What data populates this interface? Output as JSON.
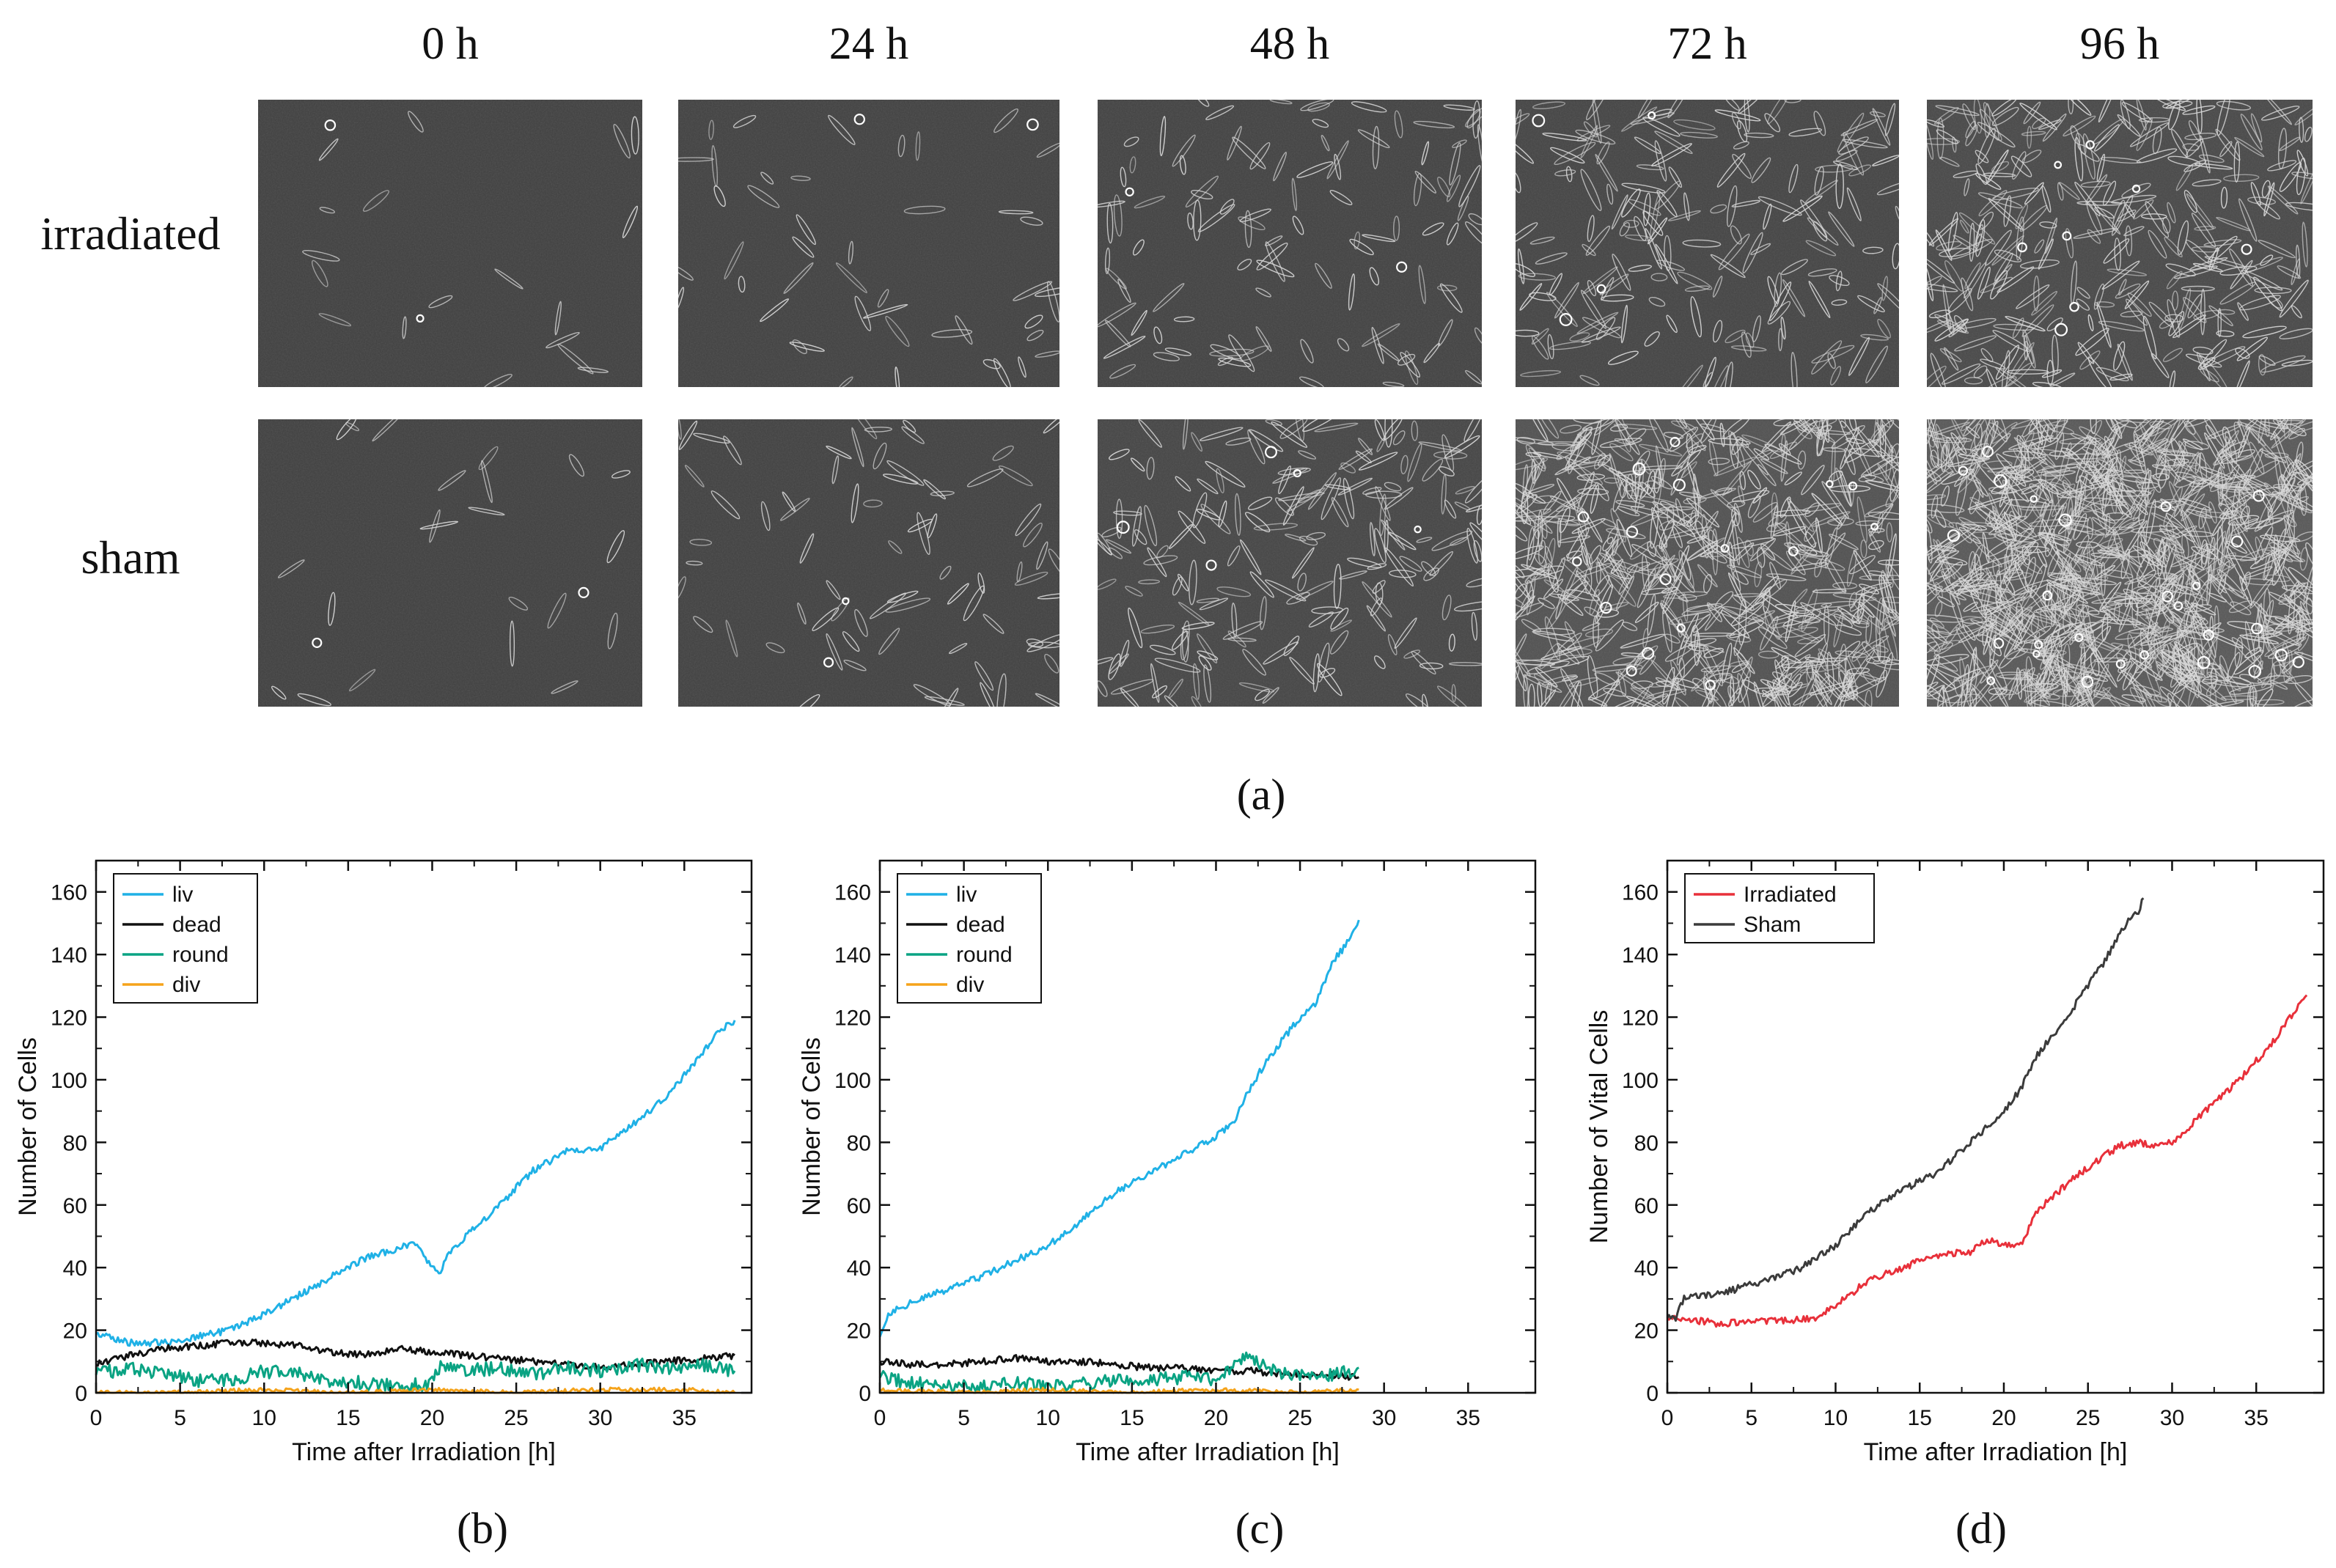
{
  "panel_a": {
    "time_labels": [
      "0 h",
      "24 h",
      "48 h",
      "72 h",
      "96 h"
    ],
    "row_labels": [
      "irradiated",
      "sham"
    ],
    "caption": "(a)",
    "cell_density": {
      "irradiated": [
        18,
        45,
        110,
        190,
        330
      ],
      "sham": [
        22,
        75,
        200,
        700,
        1100
      ]
    }
  },
  "chart_data": [
    {
      "type": "line",
      "caption": "(b)",
      "title": "",
      "xlabel": "Time after Irradiation [h]",
      "ylabel": "Number of Cells",
      "xlim": [
        0,
        39
      ],
      "ylim": [
        0,
        170
      ],
      "xticks": [
        0,
        5,
        10,
        15,
        20,
        25,
        30,
        35
      ],
      "yticks": [
        0,
        20,
        40,
        60,
        80,
        100,
        120,
        140,
        160
      ],
      "grid": false,
      "legend": "top-left",
      "series": [
        {
          "name": "liv",
          "color": "#1fb1e6",
          "x": [
            0,
            2,
            4,
            6,
            8,
            10,
            12,
            14,
            16,
            18,
            19,
            20,
            20.5,
            21,
            22,
            24,
            26,
            28,
            30,
            32,
            34,
            36,
            37,
            38
          ],
          "values": [
            19,
            16,
            16,
            18,
            20,
            25,
            31,
            37,
            43,
            46,
            48,
            40,
            38,
            45,
            50,
            60,
            71,
            77,
            78,
            86,
            95,
            108,
            115,
            119
          ]
        },
        {
          "name": "dead",
          "color": "#111111",
          "x": [
            0,
            2,
            4,
            6,
            8,
            10,
            12,
            14,
            16,
            18,
            20,
            22,
            24,
            26,
            28,
            30,
            32,
            34,
            36,
            38
          ],
          "values": [
            9,
            12,
            14,
            15,
            16,
            16,
            15,
            13,
            12,
            14,
            13,
            12,
            11,
            10,
            9,
            8,
            9,
            10,
            11,
            12
          ]
        },
        {
          "name": "round",
          "color": "#0aa383",
          "x": [
            0,
            2,
            4,
            6,
            8,
            10,
            12,
            14,
            16,
            18,
            20,
            20.5,
            22,
            24,
            26,
            28,
            30,
            32,
            34,
            36,
            38
          ],
          "values": [
            6,
            8,
            6,
            4,
            4,
            7,
            6,
            4,
            3,
            2,
            3,
            9,
            7,
            8,
            6,
            8,
            7,
            9,
            8,
            9,
            7
          ]
        },
        {
          "name": "div",
          "color": "#f5a31a",
          "x": [
            0,
            5,
            10,
            15,
            20,
            25,
            30,
            35,
            38
          ],
          "values": [
            0,
            0,
            1,
            0,
            1,
            0,
            1,
            1,
            0
          ]
        }
      ]
    },
    {
      "type": "line",
      "caption": "(c)",
      "title": "",
      "xlabel": "Time after Irradiation [h]",
      "ylabel": "Number of Cells",
      "xlim": [
        0,
        39
      ],
      "ylim": [
        0,
        170
      ],
      "xticks": [
        0,
        5,
        10,
        15,
        20,
        25,
        30,
        35
      ],
      "yticks": [
        0,
        20,
        40,
        60,
        80,
        100,
        120,
        140,
        160
      ],
      "grid": false,
      "legend": "top-left",
      "series": [
        {
          "name": "liv",
          "color": "#1fb1e6",
          "x": [
            0,
            0.5,
            1,
            2,
            4,
            6,
            8,
            10,
            12,
            14,
            16,
            18,
            20,
            21,
            22,
            23,
            24,
            25,
            26,
            27,
            28,
            28.5
          ],
          "values": [
            18,
            25,
            27,
            29,
            33,
            37,
            42,
            47,
            55,
            64,
            70,
            76,
            82,
            86,
            97,
            106,
            113,
            120,
            125,
            138,
            145,
            151
          ]
        },
        {
          "name": "dead",
          "color": "#111111",
          "x": [
            0,
            2,
            4,
            6,
            8,
            10,
            12,
            14,
            16,
            18,
            20,
            22,
            24,
            26,
            28,
            28.5
          ],
          "values": [
            10,
            9,
            9,
            10,
            11,
            10,
            10,
            9,
            8,
            8,
            7,
            7,
            6,
            6,
            5,
            5
          ]
        },
        {
          "name": "round",
          "color": "#0aa383",
          "x": [
            0,
            1,
            2,
            4,
            6,
            8,
            10,
            12,
            14,
            16,
            18,
            20,
            21,
            22,
            22.5,
            23,
            24,
            26,
            28,
            28.5
          ],
          "values": [
            5,
            4,
            3,
            2,
            2,
            3,
            2,
            3,
            4,
            4,
            5,
            4,
            8,
            13,
            9,
            8,
            6,
            5,
            7,
            8
          ]
        },
        {
          "name": "div",
          "color": "#f5a31a",
          "x": [
            0,
            5,
            10,
            15,
            20,
            25,
            28.5
          ],
          "values": [
            1,
            0,
            1,
            0,
            1,
            0,
            1
          ]
        }
      ]
    },
    {
      "type": "line",
      "caption": "(d)",
      "title": "",
      "xlabel": "Time after Irradiation [h]",
      "ylabel": "Number of Vital Cells",
      "xlim": [
        0,
        39
      ],
      "ylim": [
        0,
        170
      ],
      "xticks": [
        0,
        5,
        10,
        15,
        20,
        25,
        30,
        35
      ],
      "yticks": [
        0,
        20,
        40,
        60,
        80,
        100,
        120,
        140,
        160
      ],
      "grid": false,
      "legend": "top-left",
      "series": [
        {
          "name": "Irradiated",
          "color": "#e8303a",
          "x": [
            0,
            1,
            2,
            3,
            5,
            7,
            9,
            10,
            12,
            14,
            16,
            18,
            19,
            20,
            21,
            22,
            24,
            26,
            27,
            28,
            29,
            30,
            32,
            34,
            36,
            37,
            38
          ],
          "values": [
            24,
            23,
            23,
            22,
            23,
            23,
            24,
            28,
            36,
            40,
            44,
            45,
            49,
            47,
            47,
            58,
            68,
            76,
            79,
            80,
            79,
            80,
            90,
            100,
            112,
            120,
            127
          ]
        },
        {
          "name": "Sham",
          "color": "#3b3b3b",
          "x": [
            0,
            0.5,
            1,
            2,
            4,
            6,
            8,
            10,
            12,
            14,
            16,
            18,
            20,
            21,
            22,
            23,
            24,
            25,
            26,
            27,
            28,
            28.3
          ],
          "values": [
            24,
            24,
            30,
            31,
            33,
            36,
            40,
            47,
            58,
            65,
            70,
            80,
            90,
            97,
            108,
            115,
            122,
            130,
            138,
            148,
            154,
            158
          ]
        }
      ]
    }
  ]
}
